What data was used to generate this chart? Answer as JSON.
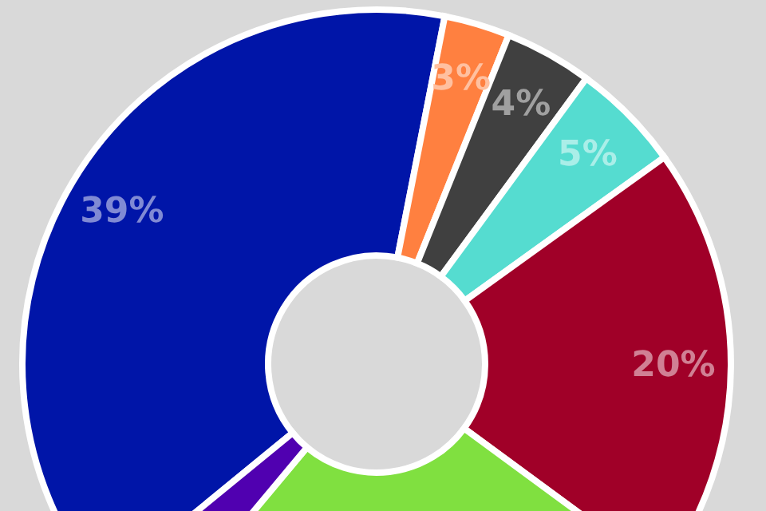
{
  "chart_data": {
    "type": "donut",
    "categories": [
      null,
      null,
      null,
      null,
      null,
      null,
      null
    ],
    "values": [
      39,
      3,
      4,
      5,
      20,
      26,
      3
    ],
    "colors": [
      "#0015a8",
      "#ff8040",
      "#404040",
      "#55dcd0",
      "#a00028",
      "#80e040",
      "#5000b0"
    ],
    "value_labels": [
      "39%",
      "3%",
      "4%",
      "5%",
      "20%",
      null,
      null
    ]
  }
}
